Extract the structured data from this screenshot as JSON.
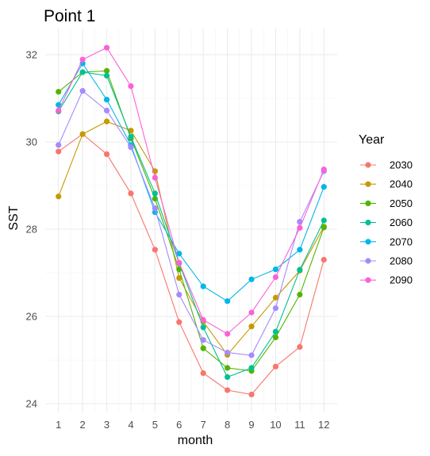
{
  "chart_data": {
    "type": "line",
    "title": "Point 1",
    "xlabel": "month",
    "ylabel": "SST",
    "x": [
      1,
      2,
      3,
      4,
      5,
      6,
      7,
      8,
      9,
      10,
      11,
      12
    ],
    "x_ticks": [
      1,
      2,
      3,
      4,
      5,
      6,
      7,
      8,
      9,
      10,
      11,
      12
    ],
    "xlim": [
      0.45,
      12.55
    ],
    "ylim": [
      23.8,
      32.6
    ],
    "y_ticks": [
      24,
      26,
      28,
      30,
      32
    ],
    "grid": true,
    "legend": {
      "title": "Year",
      "position": "right"
    },
    "series": [
      {
        "name": "2030",
        "color": "#F8766D",
        "values": [
          29.78,
          30.18,
          29.72,
          28.82,
          27.53,
          25.87,
          24.7,
          24.31,
          24.21,
          24.85,
          25.3,
          27.3
        ]
      },
      {
        "name": "2040",
        "color": "#C49A00",
        "values": [
          28.75,
          30.18,
          30.47,
          30.26,
          29.33,
          26.88,
          25.88,
          25.12,
          25.77,
          26.43,
          27.05,
          28.06
        ]
      },
      {
        "name": "2050",
        "color": "#53B400",
        "values": [
          31.15,
          31.6,
          31.63,
          30.08,
          28.7,
          27.08,
          25.27,
          24.82,
          24.75,
          25.52,
          26.5,
          28.04
        ]
      },
      {
        "name": "2060",
        "color": "#00C094",
        "values": [
          30.7,
          31.6,
          31.52,
          30.12,
          28.82,
          27.22,
          25.75,
          24.61,
          24.82,
          25.65,
          27.07,
          28.2
        ]
      },
      {
        "name": "2070",
        "color": "#00B6EB",
        "values": [
          30.85,
          31.8,
          30.97,
          29.93,
          28.39,
          27.44,
          26.69,
          26.35,
          26.85,
          27.08,
          27.53,
          28.97
        ]
      },
      {
        "name": "2080",
        "color": "#A58AFF",
        "values": [
          29.93,
          31.17,
          30.72,
          29.88,
          28.48,
          26.5,
          25.46,
          25.17,
          25.11,
          26.19,
          28.17,
          29.33
        ]
      },
      {
        "name": "2090",
        "color": "#FB61D7",
        "values": [
          30.72,
          31.89,
          32.16,
          31.28,
          29.18,
          27.23,
          25.92,
          25.6,
          26.09,
          26.9,
          28.03,
          29.37
        ]
      }
    ]
  }
}
